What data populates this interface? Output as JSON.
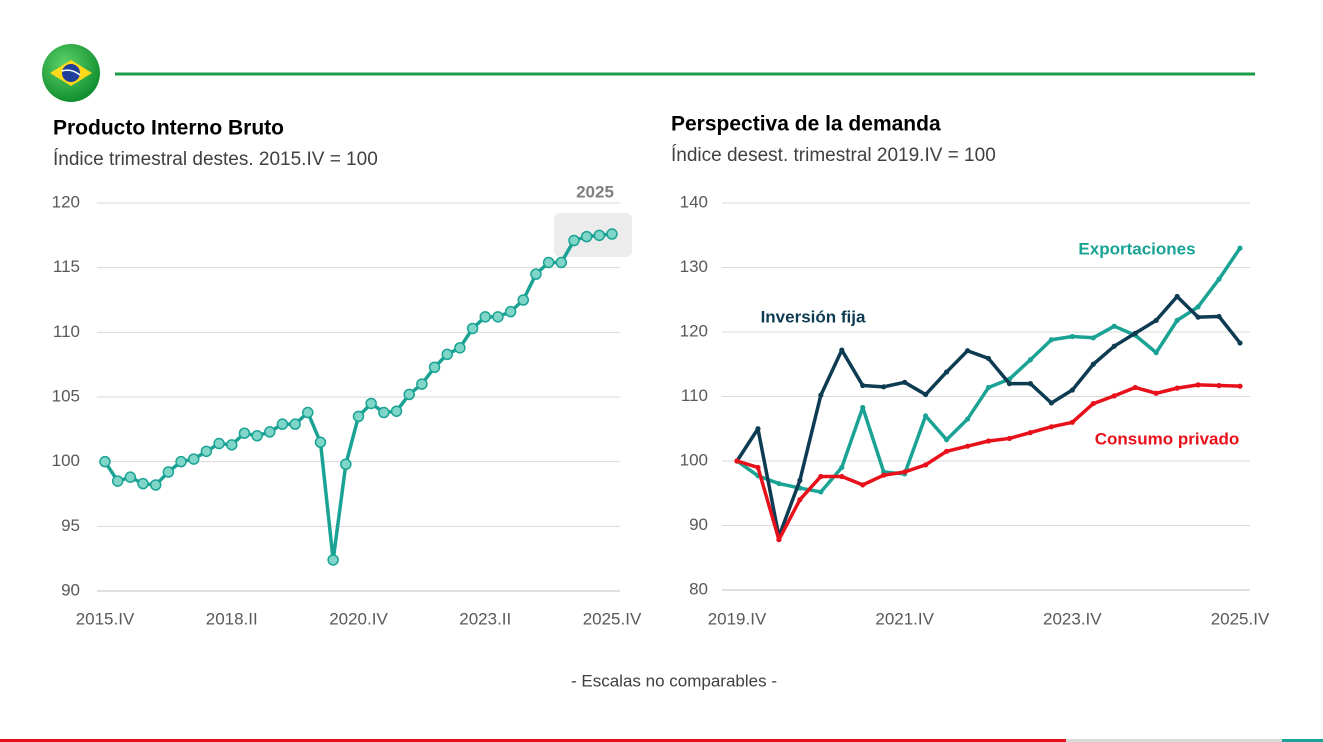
{
  "chart_data": [
    {
      "type": "line",
      "title": "Producto Interno Bruto",
      "subtitle": "Índice trimestral destes. 2015.IV = 100",
      "categories": [
        "2015.IV",
        null,
        null,
        null,
        null,
        null,
        null,
        null,
        null,
        null,
        "2018.II",
        null,
        null,
        null,
        null,
        null,
        null,
        null,
        null,
        null,
        "2020.IV",
        null,
        null,
        null,
        null,
        null,
        null,
        null,
        null,
        null,
        "2023.II",
        null,
        null,
        null,
        null,
        null,
        null,
        null,
        null,
        null,
        "2025.IV"
      ],
      "values": [
        100,
        98.5,
        98.8,
        98.3,
        98.2,
        99.2,
        100.0,
        100.2,
        100.8,
        101.4,
        101.3,
        102.2,
        102.0,
        102.3,
        102.9,
        102.9,
        103.8,
        101.5,
        92.4,
        99.8,
        103.5,
        104.5,
        103.8,
        103.9,
        105.2,
        106.0,
        107.3,
        108.3,
        108.8,
        110.3,
        111.2,
        111.2,
        111.6,
        112.5,
        114.5,
        115.4,
        115.4,
        117.1,
        117.4,
        117.5,
        117.6
      ],
      "color": "#1aa394",
      "annotation": "2025",
      "ylim": [
        90,
        120
      ],
      "yticks": [
        90,
        95,
        100,
        105,
        110,
        115,
        120
      ],
      "grid": true
    },
    {
      "type": "line",
      "title": "Perspectiva de la demanda",
      "subtitle": "Índice desest. trimestral 2019.IV = 100",
      "categories": [
        "2019.IV",
        null,
        null,
        null,
        null,
        null,
        null,
        null,
        "2021.IV",
        null,
        null,
        null,
        null,
        null,
        null,
        null,
        "2023.IV",
        null,
        null,
        null,
        null,
        null,
        null,
        null,
        "2025.IV"
      ],
      "series": [
        {
          "name": "Exportaciones",
          "color": "#1aa394",
          "values": [
            100,
            97.7,
            96.5,
            95.8,
            95.2,
            99.0,
            108.3,
            98.3,
            98.0,
            107.0,
            103.3,
            106.5,
            111.4,
            112.7,
            115.7,
            118.8,
            119.3,
            119.1,
            120.9,
            119.5,
            116.8,
            121.8,
            123.9,
            128.2,
            133
          ]
        },
        {
          "name": "Inversión fija",
          "color": "#0d3b52",
          "values": [
            100,
            105,
            88.3,
            97,
            110.2,
            117.2,
            111.7,
            111.5,
            112.2,
            110.3,
            113.8,
            117.1,
            115.9,
            112,
            112,
            109.0,
            111.0,
            115,
            117.8,
            119.8,
            121.8,
            125.5,
            122.3,
            122.4,
            118.3
          ]
        },
        {
          "name": "Consumo privado",
          "color": "#e8101a",
          "values": [
            100,
            99,
            87.8,
            94,
            97.6,
            97.6,
            96.3,
            97.8,
            98.3,
            99.4,
            101.5,
            102.3,
            103.1,
            103.5,
            104.4,
            105.3,
            106.0,
            108.9,
            110.1,
            111.4,
            110.5,
            111.3,
            111.8,
            111.7,
            111.6
          ]
        }
      ],
      "ylim": [
        80,
        140
      ],
      "yticks": [
        80,
        90,
        100,
        110,
        120,
        130,
        140
      ],
      "grid": true
    }
  ],
  "footer": "- Escalas no comparables -"
}
